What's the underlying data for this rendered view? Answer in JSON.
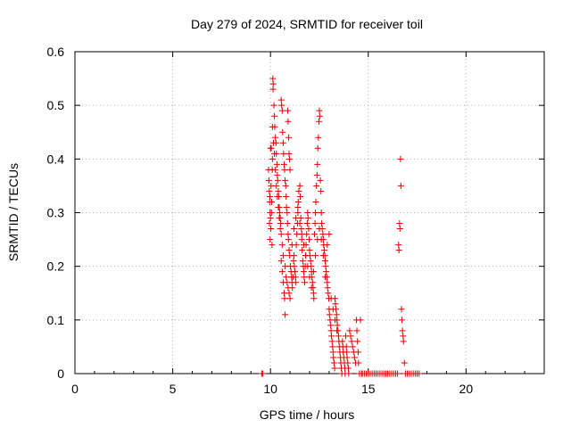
{
  "chart_data": {
    "type": "scatter",
    "title": "Day 279 of 2024, SRMTID for receiver toil",
    "xlabel": "GPS time / hours",
    "ylabel": "SRMTID / TECUs",
    "xlim": [
      0,
      24
    ],
    "ylim": [
      0,
      0.6
    ],
    "xticks": [
      0,
      5,
      10,
      15,
      20
    ],
    "yticks": [
      0,
      0.1,
      0.2,
      0.3,
      0.4,
      0.5,
      0.6
    ],
    "xtick_labels": [
      "0",
      "5",
      "10",
      "15",
      "20"
    ],
    "ytick_labels": [
      "0",
      "0.1",
      "0.2",
      "0.3",
      "0.4",
      "0.5",
      "0.6"
    ],
    "grid": true,
    "marker": "+",
    "color": "#dd0000",
    "series": [
      {
        "name": "SRMTID",
        "points": [
          [
            9.6,
            0.0
          ],
          [
            9.55,
            0.0
          ],
          [
            9.95,
            0.28
          ],
          [
            9.98,
            0.25
          ],
          [
            10.0,
            0.29
          ],
          [
            10.02,
            0.27
          ],
          [
            10.05,
            0.3
          ],
          [
            10.08,
            0.24
          ],
          [
            9.97,
            0.33
          ],
          [
            10.03,
            0.35
          ],
          [
            10.06,
            0.32
          ],
          [
            10.09,
            0.38
          ],
          [
            10.1,
            0.4
          ],
          [
            10.04,
            0.42
          ],
          [
            10.12,
            0.55
          ],
          [
            10.14,
            0.54
          ],
          [
            10.13,
            0.53
          ],
          [
            10.18,
            0.5
          ],
          [
            10.2,
            0.48
          ],
          [
            10.22,
            0.46
          ],
          [
            10.25,
            0.44
          ],
          [
            10.28,
            0.43
          ],
          [
            10.3,
            0.41
          ],
          [
            10.33,
            0.39
          ],
          [
            10.35,
            0.37
          ],
          [
            10.37,
            0.36
          ],
          [
            10.4,
            0.34
          ],
          [
            10.42,
            0.33
          ],
          [
            10.45,
            0.31
          ],
          [
            10.47,
            0.3
          ],
          [
            10.5,
            0.29
          ],
          [
            10.52,
            0.28
          ],
          [
            10.55,
            0.51
          ],
          [
            10.57,
            0.5
          ],
          [
            10.6,
            0.49
          ],
          [
            10.62,
            0.45
          ],
          [
            10.65,
            0.43
          ],
          [
            10.67,
            0.41
          ],
          [
            10.7,
            0.39
          ],
          [
            10.72,
            0.38
          ],
          [
            10.75,
            0.36
          ],
          [
            10.78,
            0.35
          ],
          [
            10.8,
            0.33
          ],
          [
            10.82,
            0.31
          ],
          [
            10.85,
            0.3
          ],
          [
            10.87,
            0.28
          ],
          [
            10.9,
            0.26
          ],
          [
            10.92,
            0.25
          ],
          [
            10.95,
            0.23
          ],
          [
            10.98,
            0.22
          ],
          [
            10.6,
            0.19
          ],
          [
            10.65,
            0.17
          ],
          [
            10.7,
            0.15
          ],
          [
            10.72,
            0.14
          ],
          [
            10.75,
            0.11
          ],
          [
            10.55,
            0.21
          ],
          [
            10.88,
            0.49
          ],
          [
            10.9,
            0.47
          ],
          [
            10.93,
            0.44
          ],
          [
            10.95,
            0.41
          ],
          [
            10.97,
            0.4
          ],
          [
            11.0,
            0.38
          ],
          [
            11.02,
            0.2
          ],
          [
            11.05,
            0.19
          ],
          [
            11.08,
            0.18
          ],
          [
            11.1,
            0.17
          ],
          [
            11.12,
            0.16
          ],
          [
            11.15,
            0.18
          ],
          [
            11.18,
            0.21
          ],
          [
            11.2,
            0.22
          ],
          [
            11.22,
            0.2
          ],
          [
            11.25,
            0.19
          ],
          [
            11.28,
            0.18
          ],
          [
            11.3,
            0.17
          ],
          [
            11.32,
            0.24
          ],
          [
            11.35,
            0.26
          ],
          [
            11.38,
            0.28
          ],
          [
            11.4,
            0.3
          ],
          [
            11.42,
            0.32
          ],
          [
            11.45,
            0.34
          ],
          [
            11.5,
            0.35
          ],
          [
            11.52,
            0.33
          ],
          [
            11.55,
            0.29
          ],
          [
            11.58,
            0.27
          ],
          [
            11.6,
            0.25
          ],
          [
            11.62,
            0.23
          ],
          [
            11.65,
            0.21
          ],
          [
            11.68,
            0.2
          ],
          [
            11.7,
            0.19
          ],
          [
            11.72,
            0.18
          ],
          [
            11.75,
            0.17
          ],
          [
            11.78,
            0.2
          ],
          [
            11.8,
            0.22
          ],
          [
            11.82,
            0.24
          ],
          [
            11.85,
            0.26
          ],
          [
            11.88,
            0.28
          ],
          [
            11.9,
            0.3
          ],
          [
            11.92,
            0.29
          ],
          [
            11.95,
            0.27
          ],
          [
            11.98,
            0.25
          ],
          [
            12.0,
            0.23
          ],
          [
            12.02,
            0.22
          ],
          [
            12.05,
            0.21
          ],
          [
            12.08,
            0.2
          ],
          [
            12.1,
            0.19
          ],
          [
            12.12,
            0.18
          ],
          [
            12.15,
            0.17
          ],
          [
            12.18,
            0.16
          ],
          [
            12.2,
            0.15
          ],
          [
            12.22,
            0.14
          ],
          [
            12.25,
            0.26
          ],
          [
            12.28,
            0.28
          ],
          [
            12.3,
            0.3
          ],
          [
            12.32,
            0.32
          ],
          [
            12.35,
            0.35
          ],
          [
            12.38,
            0.37
          ],
          [
            12.4,
            0.39
          ],
          [
            12.42,
            0.42
          ],
          [
            12.45,
            0.44
          ],
          [
            12.48,
            0.47
          ],
          [
            12.5,
            0.49
          ],
          [
            12.52,
            0.48
          ],
          [
            12.55,
            0.36
          ],
          [
            12.58,
            0.34
          ],
          [
            12.6,
            0.3
          ],
          [
            12.62,
            0.28
          ],
          [
            12.65,
            0.27
          ],
          [
            12.68,
            0.26
          ],
          [
            12.7,
            0.25
          ],
          [
            12.72,
            0.24
          ],
          [
            12.75,
            0.23
          ],
          [
            12.78,
            0.22
          ],
          [
            12.8,
            0.21
          ],
          [
            12.82,
            0.2
          ],
          [
            12.85,
            0.19
          ],
          [
            12.88,
            0.18
          ],
          [
            12.9,
            0.17
          ],
          [
            12.92,
            0.16
          ],
          [
            12.95,
            0.15
          ],
          [
            12.98,
            0.14
          ],
          [
            13.0,
            0.12
          ],
          [
            13.02,
            0.11
          ],
          [
            13.05,
            0.1
          ],
          [
            13.08,
            0.09
          ],
          [
            13.1,
            0.08
          ],
          [
            13.12,
            0.07
          ],
          [
            13.15,
            0.06
          ],
          [
            13.18,
            0.05
          ],
          [
            13.2,
            0.04
          ],
          [
            13.22,
            0.03
          ],
          [
            13.25,
            0.02
          ],
          [
            13.28,
            0.01
          ],
          [
            13.3,
            0.14
          ],
          [
            13.32,
            0.13
          ],
          [
            13.35,
            0.12
          ],
          [
            13.38,
            0.11
          ],
          [
            13.4,
            0.1
          ],
          [
            13.42,
            0.09
          ],
          [
            13.45,
            0.08
          ],
          [
            13.48,
            0.07
          ],
          [
            13.5,
            0.06
          ],
          [
            13.52,
            0.05
          ],
          [
            13.55,
            0.04
          ],
          [
            13.58,
            0.03
          ],
          [
            13.6,
            0.02
          ],
          [
            13.62,
            0.01
          ],
          [
            13.65,
            0.0
          ],
          [
            13.68,
            0.06
          ],
          [
            13.7,
            0.05
          ],
          [
            13.72,
            0.04
          ],
          [
            13.75,
            0.03
          ],
          [
            13.78,
            0.02
          ],
          [
            13.8,
            0.01
          ],
          [
            13.82,
            0.0
          ],
          [
            13.85,
            0.07
          ],
          [
            13.88,
            0.05
          ],
          [
            13.9,
            0.04
          ],
          [
            13.92,
            0.03
          ],
          [
            13.95,
            0.02
          ],
          [
            13.98,
            0.01
          ],
          [
            14.0,
            0.0
          ],
          [
            14.05,
            0.08
          ],
          [
            14.1,
            0.07
          ],
          [
            14.15,
            0.06
          ],
          [
            14.2,
            0.05
          ],
          [
            14.25,
            0.04
          ],
          [
            14.3,
            0.03
          ],
          [
            14.35,
            0.02
          ],
          [
            14.4,
            0.1
          ],
          [
            14.42,
            0.08
          ],
          [
            14.45,
            0.06
          ],
          [
            14.48,
            0.04
          ],
          [
            14.5,
            0.02
          ],
          [
            14.55,
            0.0
          ],
          [
            14.6,
            0.1
          ],
          [
            14.65,
            0.0
          ],
          [
            14.7,
            0.0
          ],
          [
            14.8,
            0.0
          ],
          [
            14.9,
            0.0
          ],
          [
            15.0,
            0.0
          ],
          [
            15.1,
            0.0
          ],
          [
            15.2,
            0.0
          ],
          [
            15.3,
            0.0
          ],
          [
            15.4,
            0.0
          ],
          [
            15.5,
            0.0
          ],
          [
            15.6,
            0.0
          ],
          [
            15.7,
            0.0
          ],
          [
            15.8,
            0.0
          ],
          [
            15.9,
            0.0
          ],
          [
            16.0,
            0.0
          ],
          [
            16.1,
            0.0
          ],
          [
            16.2,
            0.0
          ],
          [
            16.3,
            0.0
          ],
          [
            16.4,
            0.0
          ],
          [
            16.5,
            0.0
          ],
          [
            16.55,
            0.24
          ],
          [
            16.57,
            0.23
          ],
          [
            16.6,
            0.28
          ],
          [
            16.62,
            0.27
          ],
          [
            16.65,
            0.4
          ],
          [
            16.67,
            0.35
          ],
          [
            16.7,
            0.12
          ],
          [
            16.72,
            0.1
          ],
          [
            16.75,
            0.08
          ],
          [
            16.78,
            0.07
          ],
          [
            16.8,
            0.06
          ],
          [
            16.85,
            0.02
          ],
          [
            16.9,
            0.0
          ],
          [
            17.0,
            0.0
          ],
          [
            17.1,
            0.0
          ],
          [
            17.2,
            0.0
          ],
          [
            17.3,
            0.0
          ],
          [
            17.4,
            0.0
          ],
          [
            17.5,
            0.0
          ],
          [
            17.6,
            0.0
          ],
          [
            9.9,
            0.38
          ],
          [
            9.92,
            0.36
          ],
          [
            9.94,
            0.34
          ],
          [
            9.96,
            0.32
          ],
          [
            9.98,
            0.3
          ],
          [
            10.0,
            0.42
          ],
          [
            10.1,
            0.46
          ],
          [
            10.15,
            0.43
          ],
          [
            10.2,
            0.41
          ],
          [
            10.25,
            0.38
          ],
          [
            10.3,
            0.35
          ],
          [
            10.35,
            0.33
          ],
          [
            10.4,
            0.31
          ],
          [
            10.45,
            0.29
          ],
          [
            10.5,
            0.27
          ],
          [
            10.55,
            0.26
          ],
          [
            10.6,
            0.24
          ],
          [
            10.65,
            0.22
          ],
          [
            10.75,
            0.2
          ],
          [
            10.8,
            0.18
          ],
          [
            10.85,
            0.17
          ],
          [
            10.9,
            0.16
          ],
          [
            10.95,
            0.15
          ],
          [
            11.0,
            0.14
          ],
          [
            11.1,
            0.24
          ],
          [
            11.2,
            0.27
          ],
          [
            11.3,
            0.29
          ],
          [
            11.4,
            0.31
          ],
          [
            11.5,
            0.28
          ],
          [
            11.6,
            0.26
          ],
          [
            11.7,
            0.24
          ],
          [
            11.8,
            0.22
          ],
          [
            11.9,
            0.2
          ],
          [
            12.0,
            0.18
          ],
          [
            12.1,
            0.16
          ],
          [
            12.2,
            0.19
          ],
          [
            12.3,
            0.22
          ],
          [
            12.4,
            0.25
          ],
          [
            12.5,
            0.27
          ],
          [
            12.6,
            0.25
          ],
          [
            12.7,
            0.22
          ],
          [
            12.8,
            0.18
          ],
          [
            12.9,
            0.24
          ],
          [
            13.0,
            0.26
          ],
          [
            13.1,
            0.14
          ],
          [
            13.2,
            0.12
          ],
          [
            13.3,
            0.1
          ],
          [
            13.4,
            0.08
          ]
        ]
      }
    ]
  }
}
